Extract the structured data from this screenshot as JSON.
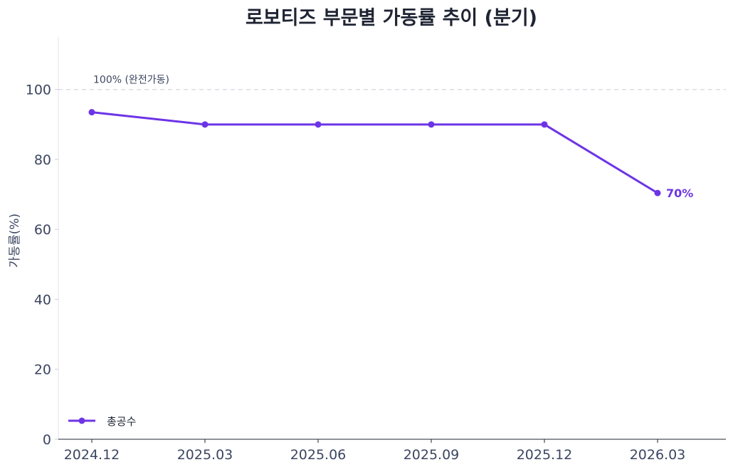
{
  "chart_data": {
    "type": "line",
    "title": "로보티즈 부문별 가동률 추이 (분기)",
    "xlabel": "",
    "ylabel": "가동률(%)",
    "categories": [
      "2024.12",
      "2025.03",
      "2025.06",
      "2025.09",
      "2025.12",
      "2026.03"
    ],
    "series": [
      {
        "name": "총공수",
        "values": [
          93.5,
          90,
          90,
          90,
          90,
          70.4
        ],
        "color": "#6d34e6"
      }
    ],
    "ylim": [
      0,
      115
    ],
    "yticks": [
      0,
      20,
      40,
      60,
      80,
      100
    ],
    "reference_line": {
      "value": 100,
      "label": "100% (완전가동)",
      "color": "#d9dde3"
    },
    "end_label": "70%",
    "legend": {
      "placement": "bottom-left"
    },
    "grid": false
  }
}
